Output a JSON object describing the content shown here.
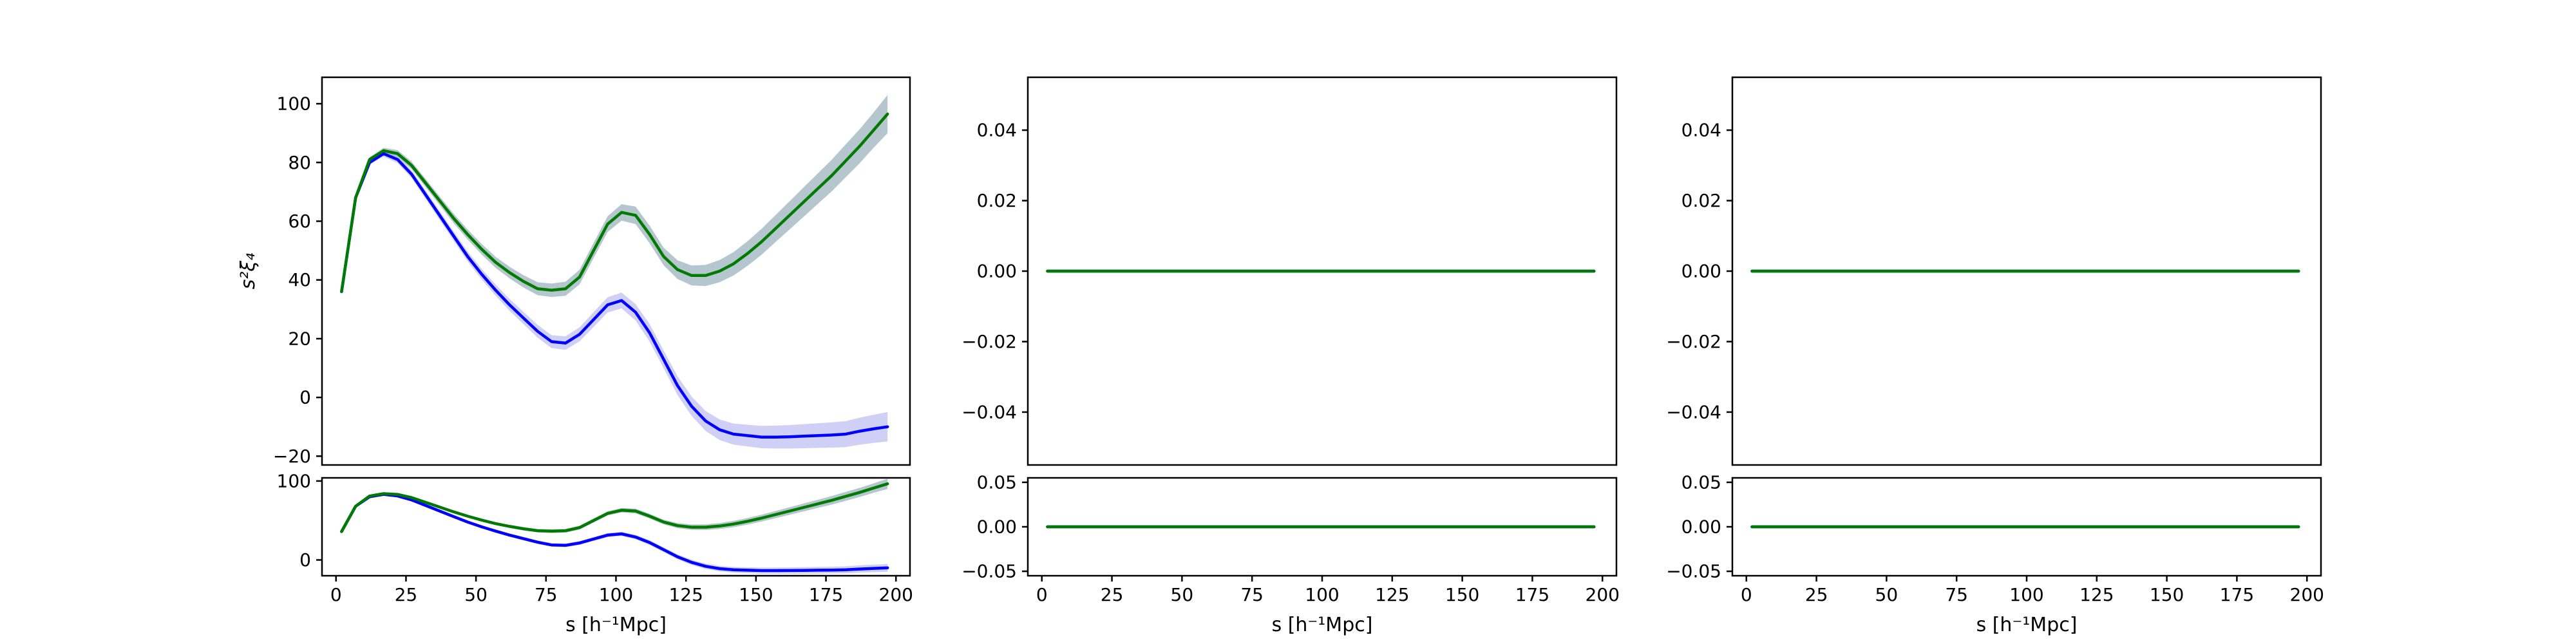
{
  "chart_data": [
    {
      "id": "top-left",
      "type": "line",
      "ylabel": "s²ξ₄",
      "xlabel": "",
      "xlim": [
        -5,
        205
      ],
      "ylim": [
        -23,
        109
      ],
      "xticks": [],
      "yticks": [
        -20,
        0,
        20,
        40,
        60,
        80,
        100
      ],
      "ytick_labels": [
        "−20",
        "0",
        "20",
        "40",
        "60",
        "80",
        "100"
      ],
      "series": [
        {
          "color": "#0000ff",
          "band_color": "#c8c8f5",
          "x": [
            2,
            7,
            12,
            17,
            22,
            27,
            32,
            37,
            42,
            47,
            52,
            57,
            62,
            67,
            72,
            77,
            82,
            87,
            92,
            97,
            102,
            107,
            112,
            117,
            122,
            127,
            132,
            137,
            142,
            147,
            152,
            157,
            162,
            167,
            172,
            177,
            182,
            187,
            192,
            197
          ],
          "y": [
            36,
            68,
            80,
            83,
            81,
            76,
            69,
            62,
            55,
            48,
            42,
            36.5,
            31.5,
            27,
            22.5,
            19,
            18.5,
            21.5,
            26.5,
            31.5,
            33,
            29,
            22,
            13,
            4,
            -3,
            -8,
            -11,
            -12.5,
            -13,
            -13.5,
            -13.5,
            -13.4,
            -13.2,
            -13,
            -12.8,
            -12.5,
            -11.5,
            -10.7,
            -10
          ],
          "err": [
            0,
            0.5,
            0.8,
            1,
            1.2,
            1.3,
            1.4,
            1.5,
            1.6,
            1.7,
            1.8,
            1.9,
            2,
            2.1,
            2.2,
            2.2,
            2.3,
            2.4,
            2.5,
            2.6,
            2.7,
            2.8,
            3,
            3,
            3.2,
            3.3,
            3.4,
            3.5,
            3.6,
            3.7,
            3.8,
            3.9,
            4,
            4.1,
            4.2,
            4.3,
            4.4,
            4.6,
            4.8,
            5
          ]
        },
        {
          "color": "#007a00",
          "band_color": "#a9bcc7",
          "x": [
            2,
            7,
            12,
            17,
            22,
            27,
            32,
            37,
            42,
            47,
            52,
            57,
            62,
            67,
            72,
            77,
            82,
            87,
            92,
            97,
            102,
            107,
            112,
            117,
            122,
            127,
            132,
            137,
            142,
            147,
            152,
            157,
            162,
            167,
            172,
            177,
            182,
            187,
            192,
            197
          ],
          "y": [
            36,
            68,
            81,
            84,
            83,
            79,
            73,
            67,
            61,
            55.5,
            50.5,
            46,
            42.5,
            39.5,
            37,
            36.5,
            37,
            41,
            50,
            59,
            63,
            62,
            55.5,
            48,
            43.5,
            41.5,
            41.5,
            43,
            45.5,
            49,
            53,
            57.5,
            62,
            66.5,
            71,
            75.5,
            80.5,
            85.5,
            91,
            96.5
          ],
          "err": [
            0,
            0.5,
            0.8,
            1,
            1.2,
            1.3,
            1.4,
            1.5,
            1.6,
            1.7,
            1.8,
            1.9,
            2,
            2.1,
            2.2,
            2.3,
            2.4,
            2.5,
            2.6,
            2.7,
            2.8,
            3,
            3,
            3,
            3.2,
            3.4,
            3.6,
            3.8,
            4,
            4.2,
            4.4,
            4.6,
            4.8,
            5,
            5.2,
            5.4,
            5.6,
            5.8,
            6,
            6.5
          ]
        }
      ]
    },
    {
      "id": "top-middle",
      "type": "line",
      "ylabel": "",
      "xlabel": "",
      "xlim": [
        -5,
        205
      ],
      "ylim": [
        -0.055,
        0.055
      ],
      "xticks": [],
      "yticks": [
        -0.04,
        -0.02,
        0,
        0.02,
        0.04
      ],
      "ytick_labels": [
        "−0.04",
        "−0.02",
        "0.00",
        "0.02",
        "0.04"
      ],
      "series": [
        {
          "color": "#0000ff",
          "x": [
            2,
            197
          ],
          "y": [
            0,
            0
          ]
        },
        {
          "color": "#007a00",
          "x": [
            2,
            197
          ],
          "y": [
            0,
            0
          ]
        }
      ]
    },
    {
      "id": "top-right",
      "type": "line",
      "ylabel": "",
      "xlabel": "",
      "xlim": [
        -5,
        205
      ],
      "ylim": [
        -0.055,
        0.055
      ],
      "xticks": [],
      "yticks": [
        -0.04,
        -0.02,
        0,
        0.02,
        0.04
      ],
      "ytick_labels": [
        "−0.04",
        "−0.02",
        "0.00",
        "0.02",
        "0.04"
      ],
      "series": [
        {
          "color": "#0000ff",
          "x": [
            2,
            197
          ],
          "y": [
            0,
            0
          ]
        },
        {
          "color": "#007a00",
          "x": [
            2,
            197
          ],
          "y": [
            0,
            0
          ]
        }
      ]
    },
    {
      "id": "bottom-left",
      "type": "line",
      "ylabel": "",
      "xlabel": "s [h⁻¹Mpc]",
      "xlim": [
        -5,
        205
      ],
      "ylim": [
        -20,
        104
      ],
      "xticks": [
        0,
        25,
        50,
        75,
        100,
        125,
        150,
        175,
        200
      ],
      "xtick_labels": [
        "0",
        "25",
        "50",
        "75",
        "100",
        "125",
        "150",
        "175",
        "200"
      ],
      "yticks": [
        0,
        100
      ],
      "ytick_labels": [
        "0",
        "100"
      ],
      "series": [
        {
          "color": "#0000ff",
          "band_color": "#c8c8f5",
          "x": [
            2,
            7,
            12,
            17,
            22,
            27,
            32,
            37,
            42,
            47,
            52,
            57,
            62,
            67,
            72,
            77,
            82,
            87,
            92,
            97,
            102,
            107,
            112,
            117,
            122,
            127,
            132,
            137,
            142,
            147,
            152,
            157,
            162,
            167,
            172,
            177,
            182,
            187,
            192,
            197
          ],
          "y": [
            36,
            68,
            80,
            83,
            81,
            76,
            69,
            62,
            55,
            48,
            42,
            36.5,
            31.5,
            27,
            22.5,
            19,
            18.5,
            21.5,
            26.5,
            31.5,
            33,
            29,
            22,
            13,
            4,
            -3,
            -8,
            -11,
            -12.5,
            -13,
            -13.5,
            -13.5,
            -13.4,
            -13.2,
            -13,
            -12.8,
            -12.5,
            -11.5,
            -10.7,
            -10
          ],
          "err": [
            0,
            0.5,
            0.8,
            1,
            1.2,
            1.3,
            1.4,
            1.5,
            1.6,
            1.7,
            1.8,
            1.9,
            2,
            2.1,
            2.2,
            2.2,
            2.3,
            2.4,
            2.5,
            2.6,
            2.7,
            2.8,
            3,
            3,
            3.2,
            3.3,
            3.4,
            3.5,
            3.6,
            3.7,
            3.8,
            3.9,
            4,
            4.1,
            4.2,
            4.3,
            4.4,
            4.6,
            4.8,
            5
          ]
        },
        {
          "color": "#007a00",
          "band_color": "#a9bcc7",
          "x": [
            2,
            7,
            12,
            17,
            22,
            27,
            32,
            37,
            42,
            47,
            52,
            57,
            62,
            67,
            72,
            77,
            82,
            87,
            92,
            97,
            102,
            107,
            112,
            117,
            122,
            127,
            132,
            137,
            142,
            147,
            152,
            157,
            162,
            167,
            172,
            177,
            182,
            187,
            192,
            197
          ],
          "y": [
            36,
            68,
            81,
            84,
            83,
            79,
            73,
            67,
            61,
            55.5,
            50.5,
            46,
            42.5,
            39.5,
            37,
            36.5,
            37,
            41,
            50,
            59,
            63,
            62,
            55.5,
            48,
            43.5,
            41.5,
            41.5,
            43,
            45.5,
            49,
            53,
            57.5,
            62,
            66.5,
            71,
            75.5,
            80.5,
            85.5,
            91,
            96.5
          ],
          "err": [
            0,
            0.5,
            0.8,
            1,
            1.2,
            1.3,
            1.4,
            1.5,
            1.6,
            1.7,
            1.8,
            1.9,
            2,
            2.1,
            2.2,
            2.3,
            2.4,
            2.5,
            2.6,
            2.7,
            2.8,
            3,
            3,
            3,
            3.2,
            3.4,
            3.6,
            3.8,
            4,
            4.2,
            4.4,
            4.6,
            4.8,
            5,
            5.2,
            5.4,
            5.6,
            5.8,
            6,
            6.5
          ]
        }
      ]
    },
    {
      "id": "bottom-middle",
      "type": "line",
      "ylabel": "",
      "xlabel": "s [h⁻¹Mpc]",
      "xlim": [
        -5,
        205
      ],
      "ylim": [
        -0.055,
        0.055
      ],
      "xticks": [
        0,
        25,
        50,
        75,
        100,
        125,
        150,
        175,
        200
      ],
      "xtick_labels": [
        "0",
        "25",
        "50",
        "75",
        "100",
        "125",
        "150",
        "175",
        "200"
      ],
      "yticks": [
        -0.05,
        0,
        0.05
      ],
      "ytick_labels": [
        "−0.05",
        "0.00",
        "0.05"
      ],
      "series": [
        {
          "color": "#0000ff",
          "x": [
            2,
            197
          ],
          "y": [
            0,
            0
          ]
        },
        {
          "color": "#007a00",
          "x": [
            2,
            197
          ],
          "y": [
            0,
            0
          ]
        }
      ]
    },
    {
      "id": "bottom-right",
      "type": "line",
      "ylabel": "",
      "xlabel": "s [h⁻¹Mpc]",
      "xlim": [
        -5,
        205
      ],
      "ylim": [
        -0.055,
        0.055
      ],
      "xticks": [
        0,
        25,
        50,
        75,
        100,
        125,
        150,
        175,
        200
      ],
      "xtick_labels": [
        "0",
        "25",
        "50",
        "75",
        "100",
        "125",
        "150",
        "175",
        "200"
      ],
      "yticks": [
        -0.05,
        0,
        0.05
      ],
      "ytick_labels": [
        "−0.05",
        "0.00",
        "0.05"
      ],
      "series": [
        {
          "color": "#0000ff",
          "x": [
            2,
            197
          ],
          "y": [
            0,
            0
          ]
        },
        {
          "color": "#007a00",
          "x": [
            2,
            197
          ],
          "y": [
            0,
            0
          ]
        }
      ]
    }
  ]
}
